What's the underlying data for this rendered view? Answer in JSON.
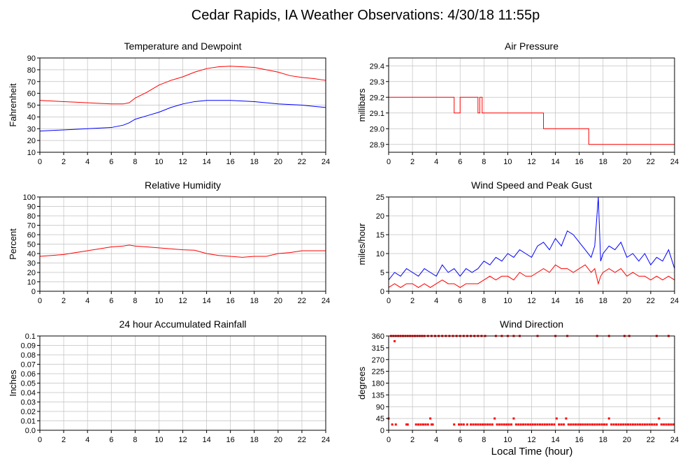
{
  "title": "Cedar Rapids, IA Weather Observations: 4/30/18 11:55p",
  "xlabel": "Local Time (hour)",
  "colors": {
    "red": "#ff0000",
    "blue": "#0000ff",
    "grid": "#c0c0c0",
    "axis": "#000000"
  },
  "chart_data": [
    {
      "id": "temperature",
      "type": "line",
      "title": "Temperature and Dewpoint",
      "ylabel": "Fahrenheit",
      "xlim": [
        0,
        24
      ],
      "ylim": [
        10,
        90
      ],
      "xticks": [
        0,
        2,
        4,
        6,
        8,
        10,
        12,
        14,
        16,
        18,
        20,
        22,
        24
      ],
      "yticks": [
        10,
        20,
        30,
        40,
        50,
        60,
        70,
        80,
        90
      ],
      "grid": true,
      "series": [
        {
          "color": "#ff0000",
          "x": [
            0,
            1,
            2,
            3,
            4,
            5,
            6,
            7,
            7.5,
            8,
            9,
            10,
            11,
            12,
            13,
            14,
            15,
            16,
            17,
            18,
            19,
            20,
            21,
            22,
            23,
            24
          ],
          "y": [
            54,
            53.5,
            53,
            52.5,
            52,
            51.5,
            51,
            51,
            52,
            56,
            61,
            67,
            71,
            74,
            78,
            81,
            82.5,
            83,
            82.5,
            82,
            80,
            78,
            75,
            73.5,
            72.5,
            71
          ]
        },
        {
          "color": "#0000ff",
          "x": [
            0,
            1,
            2,
            3,
            4,
            5,
            6,
            7,
            7.5,
            8,
            9,
            10,
            11,
            12,
            13,
            14,
            15,
            16,
            17,
            18,
            19,
            20,
            21,
            22,
            23,
            24
          ],
          "y": [
            28,
            28.5,
            29,
            29.5,
            30,
            30.5,
            31,
            33,
            35,
            38,
            41,
            44,
            48,
            51,
            53,
            54,
            54,
            54,
            53.5,
            53,
            52,
            51,
            50.5,
            50,
            49,
            48
          ]
        }
      ]
    },
    {
      "id": "pressure",
      "type": "line",
      "title": "Air Pressure",
      "ylabel": "millibars",
      "xlim": [
        0,
        24
      ],
      "ylim": [
        28.85,
        29.45
      ],
      "xticks": [
        0,
        2,
        4,
        6,
        8,
        10,
        12,
        14,
        16,
        18,
        20,
        22,
        24
      ],
      "yticks": [
        28.9,
        29.0,
        29.1,
        29.2,
        29.3,
        29.4
      ],
      "ytick_labels": [
        "28.9",
        "29.0",
        "29.1",
        "29.2",
        "29.3",
        "29.4"
      ],
      "grid": true,
      "series": [
        {
          "color": "#ff0000",
          "x": [
            0,
            5.5,
            5.5,
            6.0,
            6.0,
            7.5,
            7.5,
            7.65,
            7.65,
            7.85,
            7.85,
            8.0,
            8.0,
            13.0,
            13.0,
            16.8,
            16.8,
            24
          ],
          "y": [
            29.2,
            29.2,
            29.1,
            29.1,
            29.2,
            29.2,
            29.1,
            29.1,
            29.2,
            29.2,
            29.1,
            29.1,
            29.1,
            29.1,
            29.0,
            29.0,
            28.9,
            28.9
          ]
        }
      ]
    },
    {
      "id": "humidity",
      "type": "line",
      "title": "Relative Humidity",
      "ylabel": "Percent",
      "xlim": [
        0,
        24
      ],
      "ylim": [
        0,
        100
      ],
      "xticks": [
        0,
        2,
        4,
        6,
        8,
        10,
        12,
        14,
        16,
        18,
        20,
        22,
        24
      ],
      "yticks": [
        0,
        10,
        20,
        30,
        40,
        50,
        60,
        70,
        80,
        90,
        100
      ],
      "grid": true,
      "series": [
        {
          "color": "#ff0000",
          "x": [
            0,
            1,
            2,
            3,
            4,
            5,
            6,
            7,
            7.5,
            8,
            9,
            10,
            11,
            12,
            13,
            14,
            15,
            16,
            17,
            18,
            19,
            20,
            21,
            22,
            23,
            24
          ],
          "y": [
            37,
            38,
            39,
            41,
            43,
            45,
            47,
            48,
            49,
            48,
            47,
            46,
            45,
            44,
            43.5,
            40,
            38,
            37,
            36,
            37,
            37,
            40,
            41,
            43,
            43,
            43
          ]
        }
      ]
    },
    {
      "id": "wind-speed",
      "type": "line",
      "title": "Wind Speed and Peak Gust",
      "ylabel": "miles/hour",
      "xlim": [
        0,
        24
      ],
      "ylim": [
        0,
        25
      ],
      "xticks": [
        0,
        2,
        4,
        6,
        8,
        10,
        12,
        14,
        16,
        18,
        20,
        22,
        24
      ],
      "yticks": [
        0,
        5,
        10,
        15,
        20,
        25
      ],
      "grid": true,
      "series": [
        {
          "color": "#0000ff",
          "x": [
            0,
            0.5,
            1,
            1.5,
            2,
            2.5,
            3,
            3.5,
            4,
            4.5,
            5,
            5.5,
            6,
            6.5,
            7,
            7.5,
            8,
            8.5,
            9,
            9.5,
            10,
            10.5,
            11,
            11.5,
            12,
            12.5,
            13,
            13.5,
            14,
            14.5,
            15,
            15.5,
            16,
            16.5,
            17,
            17.3,
            17.6,
            17.8,
            18,
            18.5,
            19,
            19.5,
            20,
            20.5,
            21,
            21.5,
            22,
            22.5,
            23,
            23.5,
            24
          ],
          "y": [
            3,
            5,
            4,
            6,
            5,
            4,
            6,
            5,
            4,
            7,
            5,
            6,
            4,
            6,
            5,
            6,
            8,
            7,
            9,
            8,
            10,
            9,
            11,
            10,
            9,
            12,
            13,
            11,
            14,
            12,
            16,
            15,
            13,
            11,
            9,
            12,
            25,
            8,
            10,
            12,
            11,
            13,
            9,
            10,
            8,
            10,
            7,
            9,
            8,
            11,
            6
          ]
        },
        {
          "color": "#ff0000",
          "x": [
            0,
            0.5,
            1,
            1.5,
            2,
            2.5,
            3,
            3.5,
            4,
            4.5,
            5,
            5.5,
            6,
            6.5,
            7,
            7.5,
            8,
            8.5,
            9,
            9.5,
            10,
            10.5,
            11,
            11.5,
            12,
            12.5,
            13,
            13.5,
            14,
            14.5,
            15,
            15.5,
            16,
            16.5,
            17,
            17.3,
            17.6,
            17.8,
            18,
            18.5,
            19,
            19.5,
            20,
            20.5,
            21,
            21.5,
            22,
            22.5,
            23,
            23.5,
            24
          ],
          "y": [
            1,
            2,
            1,
            2,
            2,
            1,
            2,
            1,
            2,
            3,
            2,
            2,
            1,
            2,
            2,
            2,
            3,
            4,
            3,
            4,
            4,
            3,
            5,
            4,
            4,
            5,
            6,
            5,
            7,
            6,
            6,
            5,
            6,
            7,
            5,
            6,
            2,
            4,
            5,
            6,
            5,
            6,
            4,
            5,
            4,
            4,
            3,
            4,
            3,
            4,
            3
          ]
        }
      ]
    },
    {
      "id": "rainfall",
      "type": "line",
      "title": "24 hour Accumulated Rainfall",
      "ylabel": "Inches",
      "xlim": [
        0,
        24
      ],
      "ylim": [
        0,
        0.1
      ],
      "xticks": [
        0,
        2,
        4,
        6,
        8,
        10,
        12,
        14,
        16,
        18,
        20,
        22,
        24
      ],
      "yticks": [
        0,
        0.01,
        0.02,
        0.03,
        0.04,
        0.05,
        0.06,
        0.07,
        0.08,
        0.09,
        0.1
      ],
      "ytick_labels": [
        "0.0",
        "0.01",
        "0.02",
        "0.03",
        "0.04",
        "0.05",
        "0.06",
        "0.07",
        "0.08",
        "0.09",
        "0.1"
      ],
      "grid": true,
      "series": [
        {
          "color": "#ff0000",
          "x": [
            0,
            24
          ],
          "y": [
            0,
            0
          ]
        }
      ]
    },
    {
      "id": "wind-direction",
      "type": "scatter",
      "title": "Wind Direction",
      "ylabel": "degrees",
      "xlim": [
        0,
        24
      ],
      "ylim": [
        0,
        360
      ],
      "xticks": [
        0,
        2,
        4,
        6,
        8,
        10,
        12,
        14,
        16,
        18,
        20,
        22,
        24
      ],
      "yticks": [
        0,
        45,
        90,
        135,
        180,
        225,
        270,
        315,
        360
      ],
      "grid": true,
      "series": [
        {
          "color": "#ff0000",
          "x": [
            0.2,
            0.4,
            0.6,
            0.8,
            1.0,
            1.2,
            1.4,
            1.6,
            1.8,
            2.0,
            2.2,
            2.4,
            2.6,
            2.8,
            3.0,
            3.3,
            3.6,
            3.9,
            4.2,
            4.5,
            4.8,
            5.1,
            5.4,
            5.7,
            6.0,
            6.3,
            6.6,
            6.9,
            7.2,
            7.5,
            7.8,
            8.1,
            9.0,
            9.5,
            10.0,
            10.5,
            11.0,
            12.5,
            14.0,
            15.0,
            17.5,
            18.5,
            19.8,
            20.2,
            22.5,
            23.5
          ],
          "y": [
            360,
            360,
            360,
            360,
            360,
            360,
            360,
            360,
            360,
            360,
            360,
            360,
            360,
            360,
            360,
            360,
            360,
            360,
            360,
            360,
            360,
            360,
            360,
            360,
            360,
            360,
            360,
            360,
            360,
            360,
            360,
            360,
            360,
            360,
            360,
            360,
            360,
            360,
            360,
            360,
            360,
            360,
            360,
            360,
            360,
            360
          ]
        },
        {
          "color": "#ff0000",
          "x": [
            0.0,
            0.3,
            0.6,
            1.5,
            1.6,
            2.3,
            2.5,
            2.7,
            2.9,
            3.1,
            3.3,
            3.5,
            3.6,
            3.7,
            5.5,
            5.9,
            6.1,
            6.3,
            6.6,
            6.9,
            7.1,
            7.3,
            7.5,
            7.7,
            7.9,
            8.1,
            8.3,
            8.5,
            8.7,
            8.9,
            9.1,
            9.3,
            9.5,
            9.7,
            9.9,
            10.1,
            10.3,
            10.5,
            10.7,
            10.9,
            11.1,
            11.3,
            11.5,
            11.7,
            11.9,
            12.1,
            12.3,
            12.5,
            12.7,
            12.9,
            13.1,
            13.3,
            13.5,
            13.7,
            13.9,
            14.1,
            14.3,
            14.5,
            14.7,
            14.9,
            15.1,
            15.3,
            15.5,
            15.7,
            15.9,
            16.1,
            16.3,
            16.5,
            16.7,
            16.9,
            17.1,
            17.3,
            17.5,
            17.7,
            17.9,
            18.1,
            18.3,
            18.5,
            18.7,
            18.9,
            19.1,
            19.3,
            19.5,
            19.7,
            19.9,
            20.1,
            20.3,
            20.5,
            20.7,
            20.9,
            21.1,
            21.3,
            21.5,
            21.7,
            21.9,
            22.1,
            22.3,
            22.5,
            22.7,
            22.9,
            23.1,
            23.3,
            23.5,
            23.7,
            23.9
          ],
          "y": [
            45,
            22,
            22,
            22,
            22,
            22,
            22,
            22,
            22,
            22,
            22,
            45,
            22,
            22,
            22,
            22,
            22,
            22,
            22,
            22,
            22,
            22,
            22,
            22,
            22,
            22,
            22,
            22,
            22,
            45,
            22,
            22,
            22,
            22,
            22,
            22,
            22,
            45,
            22,
            22,
            22,
            22,
            22,
            22,
            22,
            22,
            22,
            22,
            22,
            22,
            22,
            22,
            22,
            22,
            22,
            45,
            22,
            22,
            22,
            45,
            22,
            22,
            22,
            22,
            22,
            22,
            22,
            22,
            22,
            22,
            22,
            22,
            22,
            22,
            22,
            22,
            22,
            45,
            22,
            22,
            22,
            22,
            22,
            22,
            22,
            22,
            22,
            22,
            22,
            22,
            22,
            22,
            22,
            22,
            22,
            22,
            22,
            22,
            45,
            22,
            22,
            22,
            22,
            22,
            22
          ]
        },
        {
          "color": "#ff0000",
          "x": [
            0.5
          ],
          "y": [
            340
          ]
        }
      ]
    }
  ]
}
